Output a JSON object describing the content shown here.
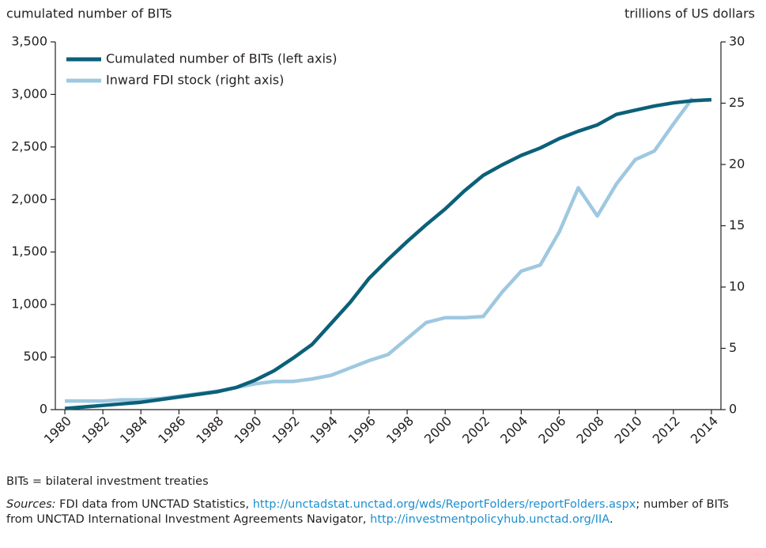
{
  "chart_data": {
    "type": "line",
    "y_axis_label": "cumulated number of BITs",
    "y2_axis_label": "trillions of US dollars",
    "x": [
      1980,
      1981,
      1982,
      1983,
      1984,
      1985,
      1986,
      1987,
      1988,
      1989,
      1990,
      1991,
      1992,
      1993,
      1994,
      1995,
      1996,
      1997,
      1998,
      1999,
      2000,
      2001,
      2002,
      2003,
      2004,
      2005,
      2006,
      2007,
      2008,
      2009,
      2010,
      2011,
      2012,
      2013,
      2014
    ],
    "series": [
      {
        "name": "Cumulated number of BITs (left axis)",
        "color": "#0b6079",
        "axis": "y",
        "values": [
          10,
          25,
          40,
          55,
          70,
          95,
          120,
          145,
          170,
          210,
          280,
          370,
          490,
          620,
          820,
          1020,
          1250,
          1430,
          1600,
          1760,
          1910,
          2080,
          2230,
          2330,
          2420,
          2490,
          2580,
          2650,
          2710,
          2810,
          2850,
          2890,
          2920,
          2940,
          2950
        ]
      },
      {
        "name": "Inward FDI stock (right axis)",
        "color": "#9fc8e0",
        "axis": "y2",
        "values": [
          0.7,
          0.7,
          0.7,
          0.8,
          0.8,
          0.9,
          1.1,
          1.3,
          1.5,
          1.8,
          2.1,
          2.3,
          2.3,
          2.5,
          2.8,
          3.4,
          4.0,
          4.5,
          5.8,
          7.1,
          7.5,
          7.5,
          7.6,
          9.6,
          11.3,
          11.8,
          14.5,
          18.1,
          15.8,
          18.4,
          20.4,
          21.1,
          23.3,
          25.4,
          null
        ]
      }
    ],
    "xlim": [
      1979.5,
      2014.5
    ],
    "xticks": [
      1980,
      1982,
      1984,
      1986,
      1988,
      1990,
      1992,
      1994,
      1996,
      1998,
      2000,
      2002,
      2004,
      2006,
      2008,
      2010,
      2012,
      2014
    ],
    "ylim": [
      0,
      3500
    ],
    "yticks": [
      0,
      500,
      {
        "value": 1000,
        "label": "1,000"
      },
      {
        "value": 1500,
        "label": "1,500"
      },
      {
        "value": 2000,
        "label": "2,000"
      },
      {
        "value": 2500,
        "label": "2,500"
      },
      {
        "value": 3000,
        "label": "3,000"
      },
      {
        "value": 3500,
        "label": "3,500"
      }
    ],
    "y2lim": [
      0,
      30
    ],
    "y2ticks": [
      0,
      5,
      10,
      15,
      20,
      25,
      30
    ],
    "legend": "upper left"
  },
  "footer": {
    "note": "BITs = bilateral investment treaties",
    "sources_label": "Sources:",
    "text1": " FDI data from UNCTAD Statistics, ",
    "link1": "http://unctadstat.unctad.org/wds/ReportFolders/reportFolders.aspx",
    "text2": "; number of BITs from  UNCTAD International Investment Agreements Navigator, ",
    "link2": "http://investmentpolicyhub.unctad.org/IIA",
    "text3": "."
  }
}
